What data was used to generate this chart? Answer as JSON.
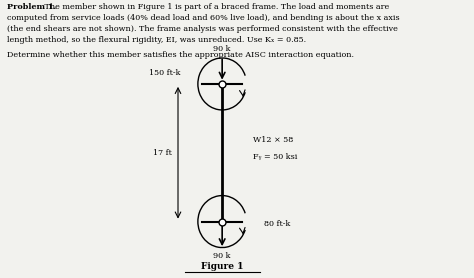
{
  "background_color": "#f2f2ee",
  "text_color": "#000000",
  "title_text": "Problem 1.",
  "subtitle_text": "Determine whether this member satisfies the appropriate AISC interaction equation.",
  "figure_label": "Figure 1",
  "load_top": "90 k",
  "moment_top": "150 ft-k",
  "length_label": "17 ft",
  "section_label": "W12 × 58",
  "fy_label": "Fᵧ = 50 ksi",
  "moment_bottom": "80 ft-k",
  "load_bottom": "90 k",
  "body_line1": " The member shown in Figure 1 is part of a braced frame. The load and moments are",
  "body_line2": "computed from service loads (40% dead load and 60% live load), and bending is about the x axis",
  "body_line3": "(the end shears are not shown). The frame analysis was performed consistent with the effective",
  "body_line4": "length method, so the flexural rigidity, EI, was unreduced. Use Kₓ = 0.85."
}
